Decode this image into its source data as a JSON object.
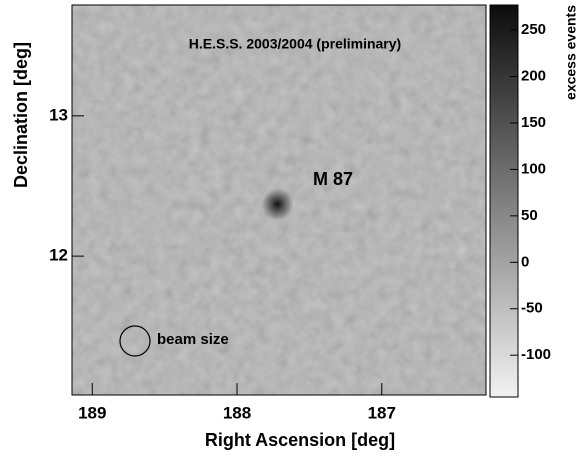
{
  "chart_data": {
    "type": "heatmap",
    "annotations": [
      "H.E.S.S. 2003/2004 (preliminary)",
      "M 87",
      "beam size"
    ],
    "x_label": "Right Ascension [deg]",
    "y_label": "Declination [deg]",
    "colorbar_label": "excess events",
    "xlim": [
      189.14,
      186.28
    ],
    "xticks": [
      189,
      188,
      187
    ],
    "ylim": [
      11.01,
      13.79
    ],
    "yticks": [
      12,
      13
    ],
    "zlim": [
      -145,
      277
    ],
    "zticks": [
      -100,
      -50,
      0,
      50,
      100,
      150,
      200,
      250
    ],
    "colors": [
      "#f2f2f2",
      "#0c0c0c"
    ],
    "points": {
      "x": [
        187.72
      ],
      "y": [
        12.37
      ],
      "values": [
        270
      ]
    }
  }
}
